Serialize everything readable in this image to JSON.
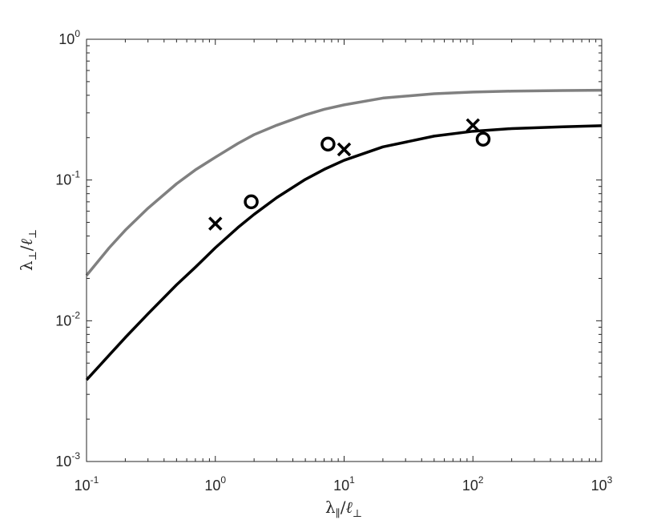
{
  "chart_data": {
    "type": "scatter",
    "x_scale": "log",
    "y_scale": "log",
    "xlim": [
      0.1,
      1000
    ],
    "ylim": [
      0.001,
      1
    ],
    "grid": false,
    "x_ticks": [
      {
        "value": 0.1,
        "base": "10",
        "exp": "-1"
      },
      {
        "value": 1,
        "base": "10",
        "exp": "0"
      },
      {
        "value": 10,
        "base": "10",
        "exp": "1"
      },
      {
        "value": 100,
        "base": "10",
        "exp": "2"
      },
      {
        "value": 1000,
        "base": "10",
        "exp": "3"
      }
    ],
    "y_ticks": [
      {
        "value": 0.001,
        "base": "10",
        "exp": "-3"
      },
      {
        "value": 0.01,
        "base": "10",
        "exp": "-2"
      },
      {
        "value": 0.1,
        "base": "10",
        "exp": "-1"
      },
      {
        "value": 1,
        "base": "10",
        "exp": "0"
      }
    ],
    "xlabel": {
      "main": "λ",
      "sub": "∥",
      "slash": "/",
      "main2": "ℓ",
      "sub2": "⊥"
    },
    "ylabel": {
      "main": "λ",
      "sub": "⊥",
      "slash": "/",
      "main2": "ℓ",
      "sub2": "⊥"
    },
    "series": [
      {
        "kind": "line",
        "color": "#808080",
        "x": [
          0.1,
          0.15,
          0.2,
          0.3,
          0.5,
          0.7,
          1,
          1.5,
          2,
          3,
          5,
          7,
          10,
          20,
          50,
          100,
          200,
          500,
          1000
        ],
        "y": [
          0.021,
          0.033,
          0.044,
          0.063,
          0.094,
          0.118,
          0.145,
          0.182,
          0.21,
          0.245,
          0.29,
          0.318,
          0.342,
          0.382,
          0.41,
          0.422,
          0.428,
          0.432,
          0.434
        ]
      },
      {
        "kind": "line",
        "color": "#000000",
        "x": [
          0.1,
          0.15,
          0.2,
          0.3,
          0.5,
          0.7,
          1,
          1.5,
          2,
          3,
          5,
          7,
          10,
          20,
          50,
          100,
          200,
          500,
          1000
        ],
        "y": [
          0.0038,
          0.0057,
          0.0076,
          0.0112,
          0.018,
          0.024,
          0.033,
          0.046,
          0.057,
          0.075,
          0.101,
          0.119,
          0.138,
          0.172,
          0.205,
          0.222,
          0.232,
          0.239,
          0.243
        ]
      },
      {
        "kind": "marker",
        "marker": "x",
        "color": "#000000",
        "x": [
          1.0,
          10.0,
          100.0
        ],
        "y": [
          0.049,
          0.165,
          0.245
        ]
      },
      {
        "kind": "marker",
        "marker": "o",
        "color": "#000000",
        "x": [
          1.9,
          7.5,
          120.0
        ],
        "y": [
          0.07,
          0.18,
          0.195
        ]
      }
    ]
  }
}
